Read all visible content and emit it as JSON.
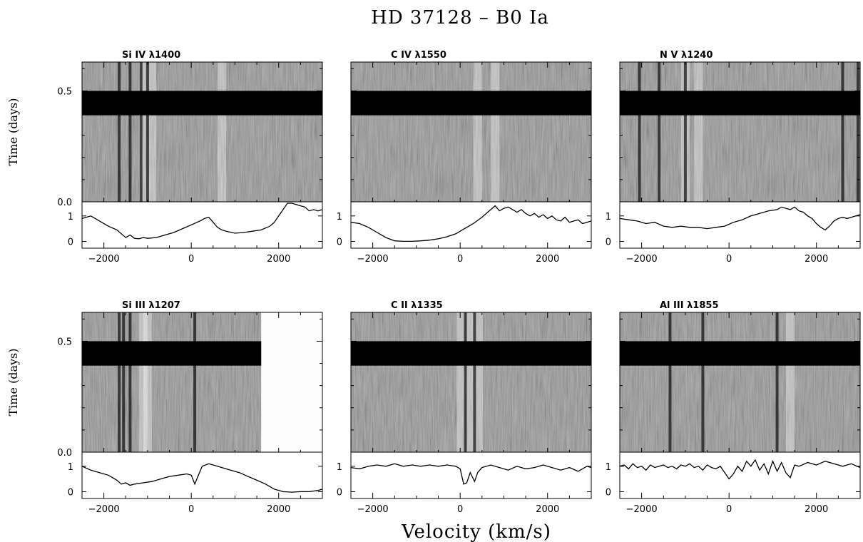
{
  "figure": {
    "title": "HD 37128 – B0 Ia",
    "xlabel": "Velocity (km/s)",
    "ylabel": "Time (days)"
  },
  "chart_data": [
    {
      "type": "heatmap",
      "title": "Si IV λ1400",
      "xlim": [
        -2500,
        3000
      ],
      "time_ylim": [
        0,
        0.63
      ],
      "time_ticks": [
        "0.0",
        "0.5"
      ],
      "flux_ylim": [
        -0.1,
        1.5
      ],
      "flux_ticks": [
        "0",
        "1"
      ],
      "x_ticks": [
        "-2000",
        "0",
        "2000"
      ],
      "data_gap_days": [
        0.39,
        0.5
      ],
      "no_data_above_velocity": null,
      "dark_streaks_kms": [
        -1650,
        -1400,
        -1150,
        -1000
      ],
      "bright_streaks_kms": [
        -1100,
        -900,
        700
      ],
      "flux_profile": {
        "velocity": [
          -2500,
          -2300,
          -2100,
          -1900,
          -1700,
          -1600,
          -1500,
          -1400,
          -1300,
          -1200,
          -1100,
          -1000,
          -800,
          -600,
          -400,
          -200,
          0,
          200,
          300,
          400,
          500,
          600,
          700,
          800,
          1000,
          1200,
          1400,
          1600,
          1800,
          1900,
          2000,
          2100,
          2200,
          2300,
          2400,
          2500,
          2600,
          2700,
          2800,
          2900,
          3000
        ],
        "flux": [
          0.9,
          1.0,
          0.8,
          0.6,
          0.45,
          0.3,
          0.15,
          0.25,
          0.12,
          0.1,
          0.15,
          0.12,
          0.15,
          0.25,
          0.35,
          0.5,
          0.65,
          0.8,
          0.9,
          0.95,
          0.75,
          0.55,
          0.45,
          0.4,
          0.32,
          0.35,
          0.4,
          0.45,
          0.6,
          0.75,
          1.0,
          1.25,
          1.5,
          1.5,
          1.45,
          1.4,
          1.35,
          1.2,
          1.25,
          1.2,
          1.25
        ]
      }
    },
    {
      "type": "heatmap",
      "title": "C IV λ1550",
      "xlim": [
        -2500,
        3000
      ],
      "time_ylim": [
        0,
        0.63
      ],
      "time_ticks": [
        "0.0",
        "0.5"
      ],
      "flux_ylim": [
        -0.1,
        1.5
      ],
      "flux_ticks": [
        "0",
        "1"
      ],
      "x_ticks": [
        "-2000",
        "0",
        "2000"
      ],
      "data_gap_days": [
        0.39,
        0.5
      ],
      "no_data_above_velocity": null,
      "dark_streaks_kms": [],
      "bright_streaks_kms": [
        400,
        800
      ],
      "flux_profile": {
        "velocity": [
          -2500,
          -2300,
          -2100,
          -1900,
          -1700,
          -1500,
          -1300,
          -1100,
          -900,
          -700,
          -500,
          -300,
          -100,
          100,
          300,
          500,
          700,
          800,
          900,
          1000,
          1100,
          1200,
          1300,
          1400,
          1500,
          1600,
          1700,
          1800,
          1900,
          2000,
          2100,
          2200,
          2300,
          2400,
          2500,
          2600,
          2700,
          2800,
          2900,
          3000
        ],
        "flux": [
          0.75,
          0.7,
          0.55,
          0.35,
          0.15,
          0.02,
          0.0,
          0.0,
          0.02,
          0.05,
          0.1,
          0.18,
          0.3,
          0.5,
          0.7,
          0.95,
          1.25,
          1.4,
          1.2,
          1.3,
          1.35,
          1.25,
          1.15,
          1.25,
          1.1,
          1.0,
          1.1,
          0.95,
          1.05,
          0.9,
          1.0,
          0.85,
          0.8,
          0.95,
          0.75,
          0.8,
          0.85,
          0.7,
          0.75,
          0.8
        ]
      }
    },
    {
      "type": "heatmap",
      "title": "N V λ1240",
      "xlim": [
        -2500,
        3000
      ],
      "time_ylim": [
        0,
        0.63
      ],
      "time_ticks": [
        "0.0",
        "0.5"
      ],
      "flux_ylim": [
        -0.1,
        1.5
      ],
      "flux_ticks": [
        "0",
        "1"
      ],
      "x_ticks": [
        "-2000",
        "0",
        "2000"
      ],
      "data_gap_days": [
        0.39,
        0.5
      ],
      "no_data_above_velocity": null,
      "dark_streaks_kms": [
        -2050,
        -1600,
        -1000,
        2600,
        2950
      ],
      "bright_streaks_kms": [
        -1000,
        -700
      ],
      "flux_profile": {
        "velocity": [
          -2500,
          -2300,
          -2100,
          -1900,
          -1700,
          -1500,
          -1300,
          -1100,
          -900,
          -700,
          -500,
          -300,
          -100,
          100,
          300,
          500,
          700,
          900,
          1100,
          1200,
          1300,
          1400,
          1500,
          1600,
          1700,
          1800,
          1900,
          2000,
          2100,
          2200,
          2300,
          2400,
          2500,
          2600,
          2700,
          2800,
          2900,
          3000
        ],
        "flux": [
          0.9,
          0.85,
          0.8,
          0.7,
          0.75,
          0.6,
          0.55,
          0.6,
          0.55,
          0.55,
          0.5,
          0.55,
          0.6,
          0.75,
          0.85,
          1.0,
          1.1,
          1.2,
          1.25,
          1.35,
          1.3,
          1.25,
          1.35,
          1.2,
          1.15,
          1.0,
          0.9,
          0.7,
          0.55,
          0.45,
          0.6,
          0.8,
          0.9,
          0.95,
          0.9,
          0.95,
          1.0,
          1.05
        ]
      }
    },
    {
      "type": "heatmap",
      "title": "Si III λ1207",
      "xlim": [
        -2500,
        3000
      ],
      "time_ylim": [
        0,
        0.63
      ],
      "time_ticks": [
        "0.0",
        "0.5"
      ],
      "flux_ylim": [
        -0.1,
        1.5
      ],
      "flux_ticks": [
        "0",
        "1"
      ],
      "x_ticks": [
        "-2000",
        "0",
        "2000"
      ],
      "data_gap_days": [
        0.39,
        0.5
      ],
      "no_data_above_velocity": 1600,
      "dark_streaks_kms": [
        -1650,
        -1550,
        -1400,
        80
      ],
      "bright_streaks_kms": [
        -1100,
        -1000
      ],
      "flux_profile": {
        "velocity": [
          -2500,
          -2300,
          -2100,
          -1900,
          -1800,
          -1700,
          -1600,
          -1500,
          -1400,
          -1300,
          -1100,
          -900,
          -700,
          -500,
          -300,
          -100,
          0,
          80,
          150,
          250,
          400,
          500,
          700,
          900,
          1100,
          1300,
          1500,
          1700,
          1900,
          2100,
          2300,
          2500,
          2700,
          2900,
          3000
        ],
        "flux": [
          1.0,
          0.85,
          0.75,
          0.65,
          0.55,
          0.45,
          0.3,
          0.35,
          0.25,
          0.3,
          0.35,
          0.4,
          0.5,
          0.6,
          0.65,
          0.7,
          0.65,
          0.3,
          0.6,
          1.0,
          1.1,
          1.05,
          0.95,
          0.85,
          0.75,
          0.6,
          0.45,
          0.3,
          0.1,
          0.0,
          -0.02,
          0.0,
          0.0,
          0.05,
          0.1
        ]
      }
    },
    {
      "type": "heatmap",
      "title": "C II λ1335",
      "xlim": [
        -2500,
        3000
      ],
      "time_ylim": [
        0,
        0.63
      ],
      "time_ticks": [
        "0.0",
        "0.5"
      ],
      "flux_ylim": [
        -0.1,
        1.5
      ],
      "flux_ticks": [
        "0",
        "1"
      ],
      "x_ticks": [
        "-2000",
        "0",
        "2000"
      ],
      "data_gap_days": [
        0.39,
        0.5
      ],
      "no_data_above_velocity": null,
      "dark_streaks_kms": [
        120,
        330
      ],
      "bright_streaks_kms": [
        20,
        230,
        420
      ],
      "flux_profile": {
        "velocity": [
          -2500,
          -2300,
          -2100,
          -1900,
          -1700,
          -1500,
          -1300,
          -1100,
          -900,
          -700,
          -500,
          -300,
          -100,
          0,
          80,
          150,
          230,
          330,
          400,
          500,
          700,
          900,
          1100,
          1300,
          1500,
          1700,
          1900,
          2100,
          2300,
          2500,
          2700,
          2900,
          3000
        ],
        "flux": [
          0.95,
          0.9,
          1.0,
          1.05,
          1.0,
          1.1,
          1.0,
          1.05,
          1.0,
          1.05,
          1.0,
          1.05,
          1.0,
          0.9,
          0.3,
          0.35,
          0.75,
          0.4,
          0.75,
          0.95,
          1.05,
          0.95,
          0.85,
          1.0,
          0.9,
          0.95,
          1.05,
          0.95,
          0.85,
          0.95,
          0.8,
          1.0,
          0.95
        ]
      }
    },
    {
      "type": "heatmap",
      "title": "Al III λ1855",
      "xlim": [
        -2500,
        3000
      ],
      "time_ylim": [
        0,
        0.63
      ],
      "time_ticks": [
        "0.0",
        "0.5"
      ],
      "flux_ylim": [
        -0.1,
        1.5
      ],
      "flux_ticks": [
        "0",
        "1"
      ],
      "x_ticks": [
        "-2000",
        "0",
        "2000"
      ],
      "data_gap_days": [
        0.39,
        0.5
      ],
      "no_data_above_velocity": null,
      "dark_streaks_kms": [
        -1350,
        -600,
        1100
      ],
      "bright_streaks_kms": [
        1400
      ],
      "flux_profile": {
        "velocity": [
          -2500,
          -2400,
          -2300,
          -2200,
          -2100,
          -2000,
          -1900,
          -1800,
          -1700,
          -1600,
          -1500,
          -1400,
          -1300,
          -1200,
          -1100,
          -1000,
          -900,
          -800,
          -700,
          -600,
          -500,
          -400,
          -300,
          -200,
          -100,
          0,
          100,
          200,
          300,
          400,
          500,
          600,
          700,
          800,
          900,
          1000,
          1100,
          1200,
          1300,
          1400,
          1500,
          1600,
          1800,
          2000,
          2200,
          2400,
          2600,
          2800,
          3000
        ],
        "flux": [
          1.0,
          1.05,
          0.9,
          1.1,
          0.95,
          1.0,
          0.85,
          1.05,
          0.95,
          1.0,
          1.05,
          0.95,
          1.0,
          0.9,
          1.05,
          1.0,
          1.1,
          0.95,
          1.0,
          0.85,
          1.05,
          0.95,
          0.9,
          1.0,
          0.75,
          0.5,
          0.7,
          1.0,
          0.8,
          1.2,
          1.0,
          1.25,
          0.85,
          1.1,
          0.7,
          1.2,
          0.8,
          1.15,
          0.75,
          0.55,
          1.05,
          1.0,
          1.15,
          1.05,
          1.2,
          1.1,
          1.0,
          1.1,
          0.95
        ]
      }
    }
  ]
}
